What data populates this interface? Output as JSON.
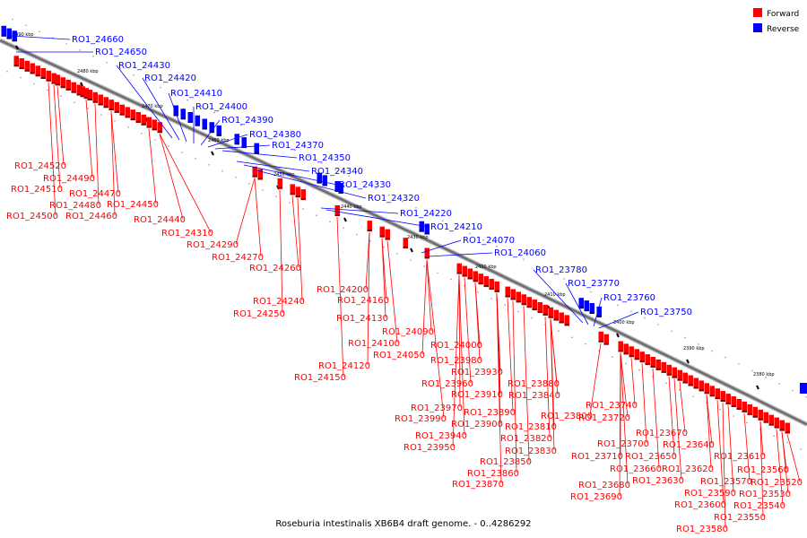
{
  "caption": "Roseburia intestinalis XB6B4 draft genome. - 0..4286292",
  "legend": [
    {
      "label": "Forward",
      "color": "#ff0000"
    },
    {
      "label": "Reverse",
      "color": "#0000ff"
    }
  ],
  "ticks": [
    "2490 kbp",
    "2480 kbp",
    "2470 kbp",
    "2460 kbp",
    "2450 kbp",
    "2440 kbp",
    "2430 kbp",
    "2420 kbp",
    "2410 kbp",
    "2400 kbp",
    "2390 kbp",
    "2380 kbp"
  ],
  "genes_forward": [
    "RO1_24520",
    "RO1_24490",
    "RO1_24510",
    "RO1_24470",
    "RO1_24480",
    "RO1_24500",
    "RO1_24460",
    "RO1_24450",
    "RO1_24440",
    "RO1_24310",
    "RO1_24290",
    "RO1_24270",
    "RO1_24260",
    "RO1_24200",
    "RO1_24240",
    "RO1_24160",
    "RO1_24250",
    "RO1_24130",
    "RO1_24090",
    "RO1_24100",
    "RO1_24050",
    "RO1_24120",
    "RO1_24150",
    "RO1_24000",
    "RO1_23980",
    "RO1_23930",
    "RO1_23960",
    "RO1_23880",
    "RO1_23910",
    "RO1_23840",
    "RO1_23970",
    "RO1_23890",
    "RO1_23990",
    "RO1_23800",
    "RO1_23900",
    "RO1_23810",
    "RO1_23940",
    "RO1_23820",
    "RO1_23950",
    "RO1_23830",
    "RO1_23850",
    "RO1_23860",
    "RO1_23870",
    "RO1_23740",
    "RO1_23720",
    "RO1_23670",
    "RO1_23700",
    "RO1_23640",
    "RO1_23650",
    "RO1_23710",
    "RO1_23610",
    "RO1_23660",
    "RO1_23620",
    "RO1_23560",
    "RO1_23630",
    "RO1_23570",
    "RO1_23520",
    "RO1_23680",
    "RO1_23590",
    "RO1_23530",
    "RO1_23690",
    "RO1_23600",
    "RO1_23540",
    "RO1_23550",
    "RO1_23580"
  ],
  "genes_reverse": [
    "RO1_24660",
    "RO1_24650",
    "RO1_24430",
    "RO1_24420",
    "RO1_24410",
    "RO1_24400",
    "RO1_24390",
    "RO1_24380",
    "RO1_24370",
    "RO1_24350",
    "RO1_24340",
    "RO1_24330",
    "RO1_24320",
    "RO1_24220",
    "RO1_24210",
    "RO1_24070",
    "RO1_24060",
    "RO1_23780",
    "RO1_23770",
    "RO1_23760",
    "RO1_23750"
  ]
}
